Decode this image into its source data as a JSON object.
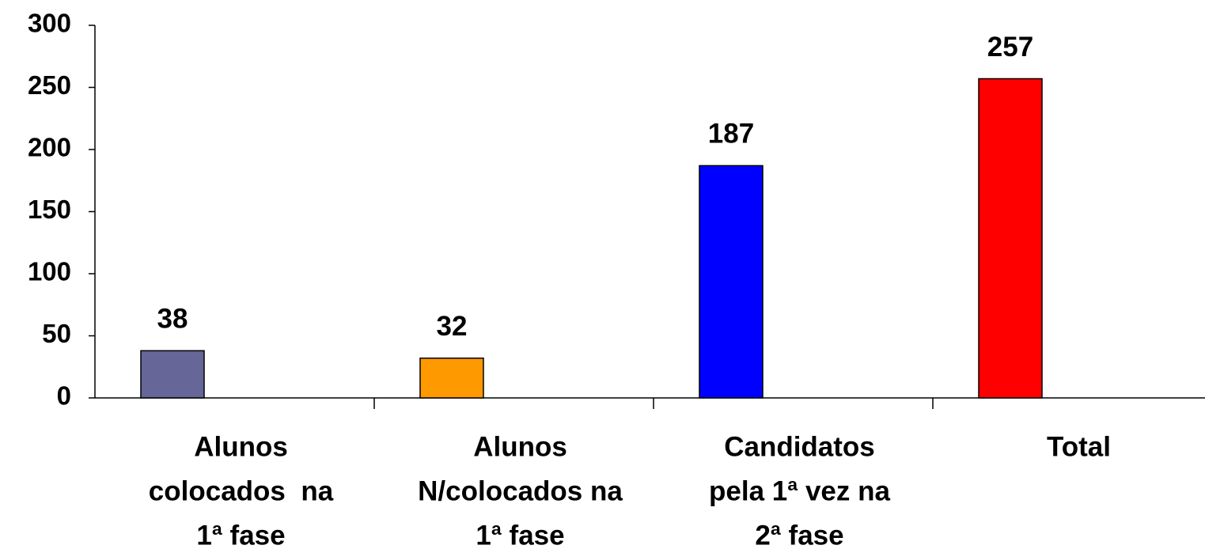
{
  "chart_data": {
    "type": "bar",
    "categories": [
      [
        "Alunos",
        "colocados  na",
        "1ª fase"
      ],
      [
        "Alunos",
        "N/colocados na",
        "1ª fase"
      ],
      [
        "Candidatos",
        "pela 1ª vez na",
        "2ª fase"
      ],
      [
        "Total"
      ]
    ],
    "values": [
      38,
      32,
      187,
      257
    ],
    "colors": [
      "#666699",
      "#ff9900",
      "#0000ff",
      "#ff0000"
    ],
    "ylim": [
      0,
      300
    ],
    "yticks": [
      0,
      50,
      100,
      150,
      200,
      250,
      300
    ],
    "grid": false
  }
}
